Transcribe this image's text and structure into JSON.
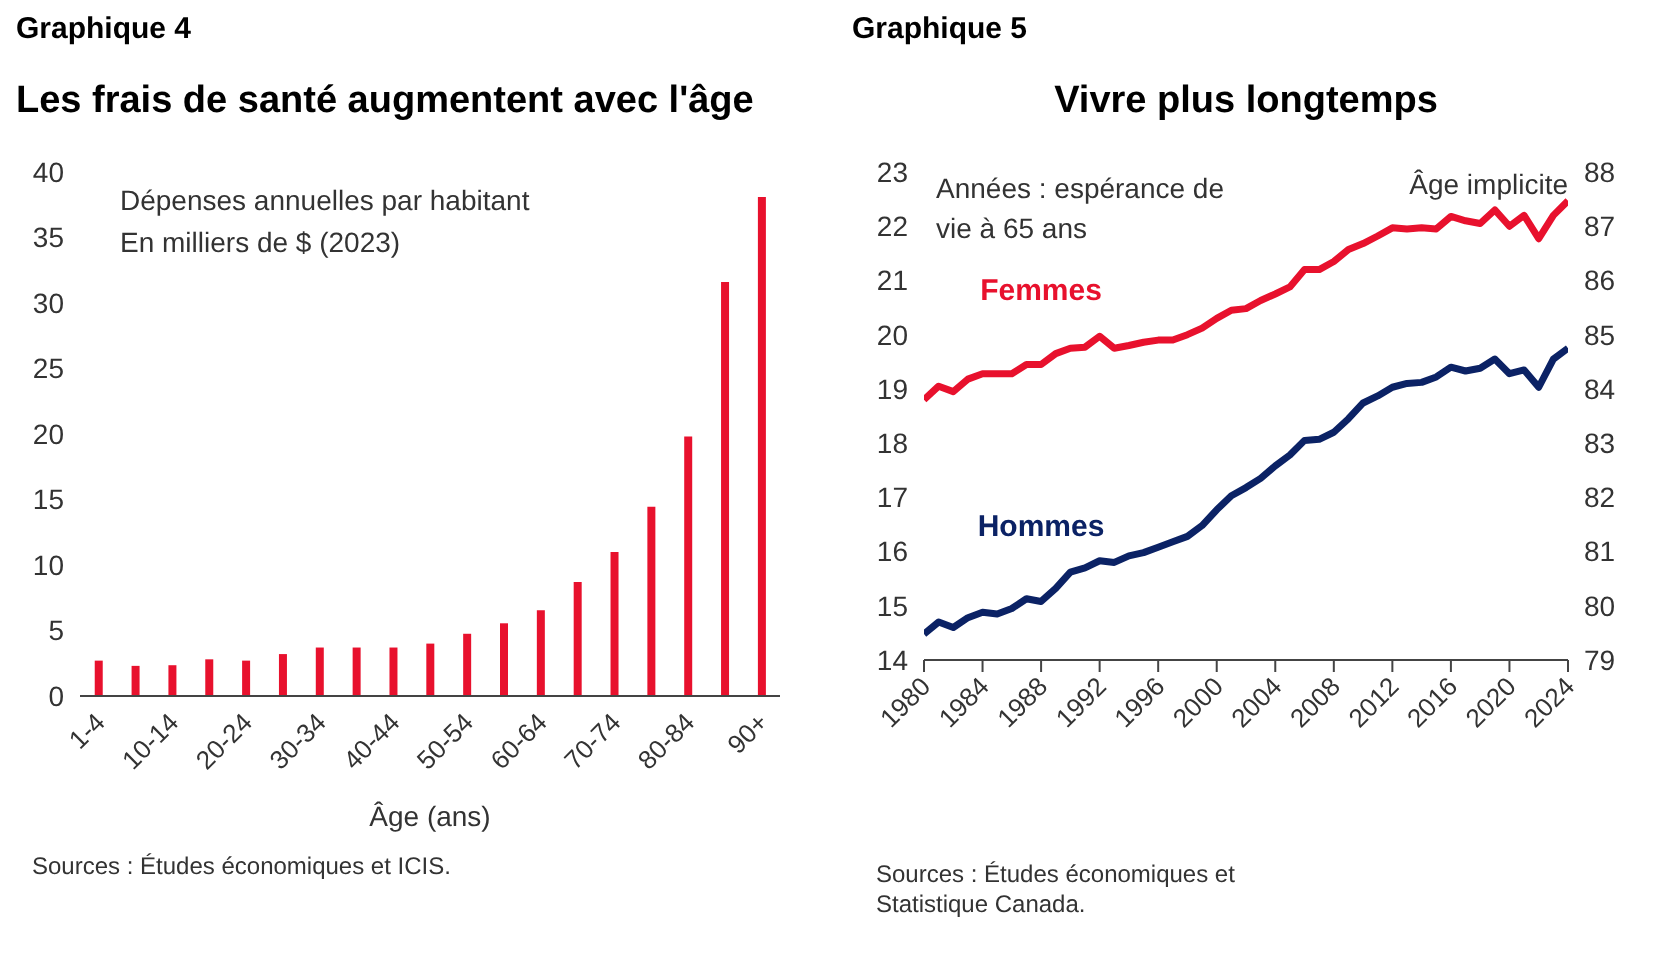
{
  "chart_data": [
    {
      "type": "bar",
      "title": "Graphique 4",
      "subtitle": "Les frais de santé augmentent avec l'âge",
      "ylabel": "Dépenses annuelles par habitant\nEn milliers de $ (2023)",
      "xlabel": "Âge (ans)",
      "annotations": [
        "Sources : Études économiques et ICIS."
      ],
      "categories": [
        "1-4",
        null,
        "10-14",
        null,
        "20-24",
        null,
        "30-34",
        null,
        "40-44",
        null,
        "50-54",
        null,
        "60-64",
        null,
        "70-74",
        null,
        "80-84",
        null,
        "90+"
      ],
      "values": [
        2.7,
        2.3,
        2.35,
        2.8,
        2.7,
        3.2,
        3.7,
        3.7,
        3.7,
        4.0,
        4.75,
        5.55,
        6.55,
        8.7,
        11.0,
        14.45,
        19.8,
        31.6,
        38.1
      ],
      "color": "#e8112d",
      "ylim": [
        0,
        40
      ],
      "yticks": [
        0,
        5,
        10,
        15,
        20,
        25,
        30,
        35,
        40
      ]
    },
    {
      "type": "line",
      "title": "Graphique 5",
      "subtitle": "Vivre plus longtemps",
      "ylabel": "Années : espérance de\nvie à 65 ans",
      "y2label": "Âge implicite",
      "annotations": [
        "Sources : Études économiques et\nStatistique Canada."
      ],
      "x": [
        1980,
        1981,
        1982,
        1983,
        1984,
        1985,
        1986,
        1987,
        1988,
        1989,
        1990,
        1991,
        1992,
        1993,
        1994,
        1995,
        1996,
        1997,
        1998,
        1999,
        2000,
        2001,
        2002,
        2003,
        2004,
        2005,
        2006,
        2007,
        2008,
        2009,
        2010,
        2011,
        2012,
        2013,
        2014,
        2015,
        2016,
        2017,
        2018,
        2019,
        2020,
        2021,
        2022,
        2023,
        2024
      ],
      "series": [
        {
          "name": "Femmes",
          "color": "#e8112d",
          "values": [
            18.8,
            19.05,
            18.95,
            19.18,
            19.28,
            19.28,
            19.28,
            19.45,
            19.45,
            19.65,
            19.75,
            19.77,
            19.97,
            19.75,
            19.8,
            19.86,
            19.9,
            19.9,
            20.0,
            20.12,
            20.3,
            20.45,
            20.48,
            20.63,
            20.75,
            20.88,
            21.2,
            21.2,
            21.35,
            21.57,
            21.68,
            21.82,
            21.97,
            21.95,
            21.97,
            21.95,
            22.18,
            22.1,
            22.05,
            22.3,
            22.0,
            22.2,
            21.77,
            22.2,
            22.47
          ]
        },
        {
          "name": "Hommes",
          "color": "#0b2265",
          "values": [
            14.48,
            14.7,
            14.6,
            14.78,
            14.88,
            14.85,
            14.95,
            15.13,
            15.08,
            15.32,
            15.62,
            15.7,
            15.83,
            15.8,
            15.92,
            15.98,
            16.08,
            16.18,
            16.28,
            16.48,
            16.77,
            17.03,
            17.18,
            17.35,
            17.58,
            17.78,
            18.05,
            18.07,
            18.2,
            18.45,
            18.74,
            18.87,
            19.03,
            19.1,
            19.12,
            19.22,
            19.4,
            19.33,
            19.38,
            19.55,
            19.28,
            19.35,
            19.03,
            19.55,
            19.75
          ]
        }
      ],
      "xlim": [
        1980,
        2024
      ],
      "xticks": [
        1980,
        1984,
        1988,
        1992,
        1996,
        2000,
        2004,
        2008,
        2012,
        2016,
        2020,
        2024
      ],
      "ylim": [
        14,
        23
      ],
      "yticks": [
        14,
        15,
        16,
        17,
        18,
        19,
        20,
        21,
        22,
        23
      ],
      "y2lim": [
        79,
        88
      ],
      "y2ticks": [
        79,
        80,
        81,
        82,
        83,
        84,
        85,
        86,
        87,
        88
      ],
      "marker": "none"
    }
  ]
}
